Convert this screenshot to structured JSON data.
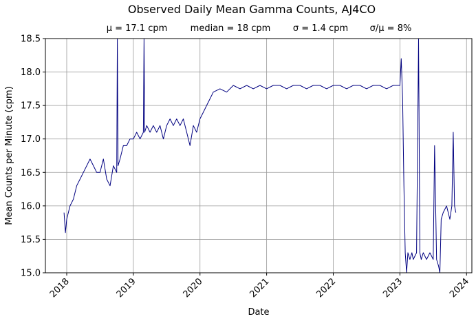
{
  "chart_data": {
    "type": "line",
    "title": "Observed Daily Mean Gamma Counts, AJ4CO",
    "stats": [
      "μ = 17.1 cpm",
      "median = 18 cpm",
      "σ = 1.4 cpm",
      "σ/μ = 8%"
    ],
    "xlabel": "Date",
    "ylabel": "Mean Counts per Minute (cpm)",
    "xlim": [
      2017.68,
      2024.08
    ],
    "ylim": [
      15.0,
      18.5
    ],
    "x_ticks": [
      2018,
      2019,
      2020,
      2021,
      2022,
      2023,
      2024
    ],
    "x_tick_labels": [
      "2018",
      "2019",
      "2020",
      "2021",
      "2022",
      "2023",
      "2024"
    ],
    "y_ticks": [
      15.0,
      15.5,
      16.0,
      16.5,
      17.0,
      17.5,
      18.0,
      18.5
    ],
    "y_tick_labels": [
      "15.0",
      "15.5",
      "16.0",
      "16.5",
      "17.0",
      "17.5",
      "18.0",
      "18.5"
    ],
    "grid": true,
    "line_color": "#000080",
    "series": [
      {
        "x": [
          2017.96,
          2017.98,
          2018.0,
          2018.05,
          2018.1,
          2018.15,
          2018.2,
          2018.25,
          2018.3,
          2018.35,
          2018.4,
          2018.45,
          2018.5,
          2018.55,
          2018.6,
          2018.65,
          2018.7,
          2018.75,
          2018.76,
          2018.77,
          2018.8,
          2018.85,
          2018.9,
          2018.95,
          2019.0,
          2019.05,
          2019.1,
          2019.15,
          2019.16,
          2019.17,
          2019.2,
          2019.25,
          2019.3,
          2019.35,
          2019.4,
          2019.45,
          2019.5,
          2019.55,
          2019.6,
          2019.65,
          2019.7,
          2019.75,
          2019.8,
          2019.85,
          2019.9,
          2019.95,
          2020.0,
          2020.05,
          2020.1,
          2020.15,
          2020.2,
          2020.3,
          2020.4,
          2020.5,
          2020.6,
          2020.7,
          2020.8,
          2020.9,
          2021.0,
          2021.1,
          2021.2,
          2021.3,
          2021.4,
          2021.5,
          2021.6,
          2021.7,
          2021.8,
          2021.9,
          2022.0,
          2022.1,
          2022.2,
          2022.3,
          2022.4,
          2022.5,
          2022.6,
          2022.7,
          2022.8,
          2022.9,
          2023.0,
          2023.02,
          2023.04,
          2023.06,
          2023.08,
          2023.1,
          2023.12,
          2023.15,
          2023.18,
          2023.2,
          2023.25,
          2023.28,
          2023.3,
          2023.32,
          2023.35,
          2023.4,
          2023.45,
          2023.5,
          2023.52,
          2023.55,
          2023.58,
          2023.6,
          2023.62,
          2023.65,
          2023.7,
          2023.75,
          2023.78,
          2023.8,
          2023.82,
          2023.84
        ],
        "y": [
          15.9,
          15.6,
          15.8,
          16.0,
          16.1,
          16.3,
          16.4,
          16.5,
          16.6,
          16.7,
          16.6,
          16.5,
          16.5,
          16.7,
          16.4,
          16.3,
          16.6,
          16.5,
          18.5,
          16.6,
          16.7,
          16.9,
          16.9,
          17.0,
          17.0,
          17.1,
          17.0,
          17.1,
          18.5,
          17.1,
          17.2,
          17.1,
          17.2,
          17.1,
          17.2,
          17.0,
          17.2,
          17.3,
          17.2,
          17.3,
          17.2,
          17.3,
          17.1,
          16.9,
          17.2,
          17.1,
          17.3,
          17.4,
          17.5,
          17.6,
          17.7,
          17.75,
          17.7,
          17.8,
          17.75,
          17.8,
          17.75,
          17.8,
          17.75,
          17.8,
          17.8,
          17.75,
          17.8,
          17.8,
          17.75,
          17.8,
          17.8,
          17.75,
          17.8,
          17.8,
          17.75,
          17.8,
          17.8,
          17.75,
          17.8,
          17.8,
          17.75,
          17.8,
          17.8,
          18.2,
          17.6,
          16.3,
          15.3,
          15.0,
          15.3,
          15.2,
          15.3,
          15.2,
          15.3,
          18.5,
          15.3,
          15.2,
          15.3,
          15.2,
          15.3,
          15.2,
          16.9,
          15.2,
          15.1,
          15.0,
          15.8,
          15.9,
          16.0,
          15.8,
          16.0,
          17.1,
          16.0,
          15.9
        ]
      }
    ]
  }
}
